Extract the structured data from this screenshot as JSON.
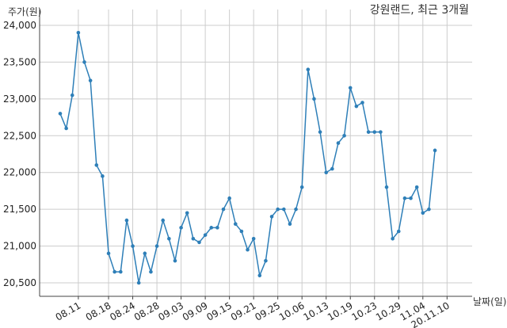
{
  "chart_data": {
    "type": "line",
    "title": "강원랜드, 최근 3개월",
    "xlabel": "날짜(일)",
    "ylabel": "주가(원)",
    "ylim": [
      20300,
      24000
    ],
    "yticks": [
      "24,000",
      "23,500",
      "23,000",
      "22,500",
      "22,000",
      "21,500",
      "21,000",
      "20,500"
    ],
    "ytick_values": [
      24000,
      23500,
      23000,
      22500,
      22000,
      21500,
      21000,
      20500
    ],
    "xtick_labels": [
      "08.11",
      "08.18",
      "08.24",
      "08.28",
      "09.03",
      "09.09",
      "09.15",
      "09.21",
      "09.25",
      "10.06",
      "10.13",
      "10.19",
      "10.23",
      "10.29",
      "11.04",
      "20.11.10"
    ],
    "xtick_index": [
      3,
      8,
      12,
      16,
      20,
      24,
      28,
      32,
      36,
      40,
      44,
      48,
      52,
      56,
      60,
      64
    ],
    "grid": true,
    "series": [
      {
        "color": "#2e7fb8",
        "values": [
          22800,
          22600,
          23050,
          23900,
          23500,
          23250,
          22100,
          21950,
          20900,
          20650,
          20650,
          21350,
          21000,
          20500,
          20900,
          20650,
          21000,
          21350,
          21100,
          20800,
          21250,
          21450,
          21100,
          21050,
          21150,
          21250,
          21250,
          21500,
          21650,
          21300,
          21200,
          20950,
          21100,
          20600,
          20800,
          21400,
          21500,
          21500,
          21300,
          21500,
          21800,
          23400,
          23000,
          22550,
          22000,
          22050,
          22400,
          22500,
          23150,
          22900,
          22950,
          22550,
          22550,
          22550,
          21800,
          21100,
          21200,
          21650,
          21650,
          21800,
          21450,
          21500,
          22300
        ]
      }
    ]
  }
}
